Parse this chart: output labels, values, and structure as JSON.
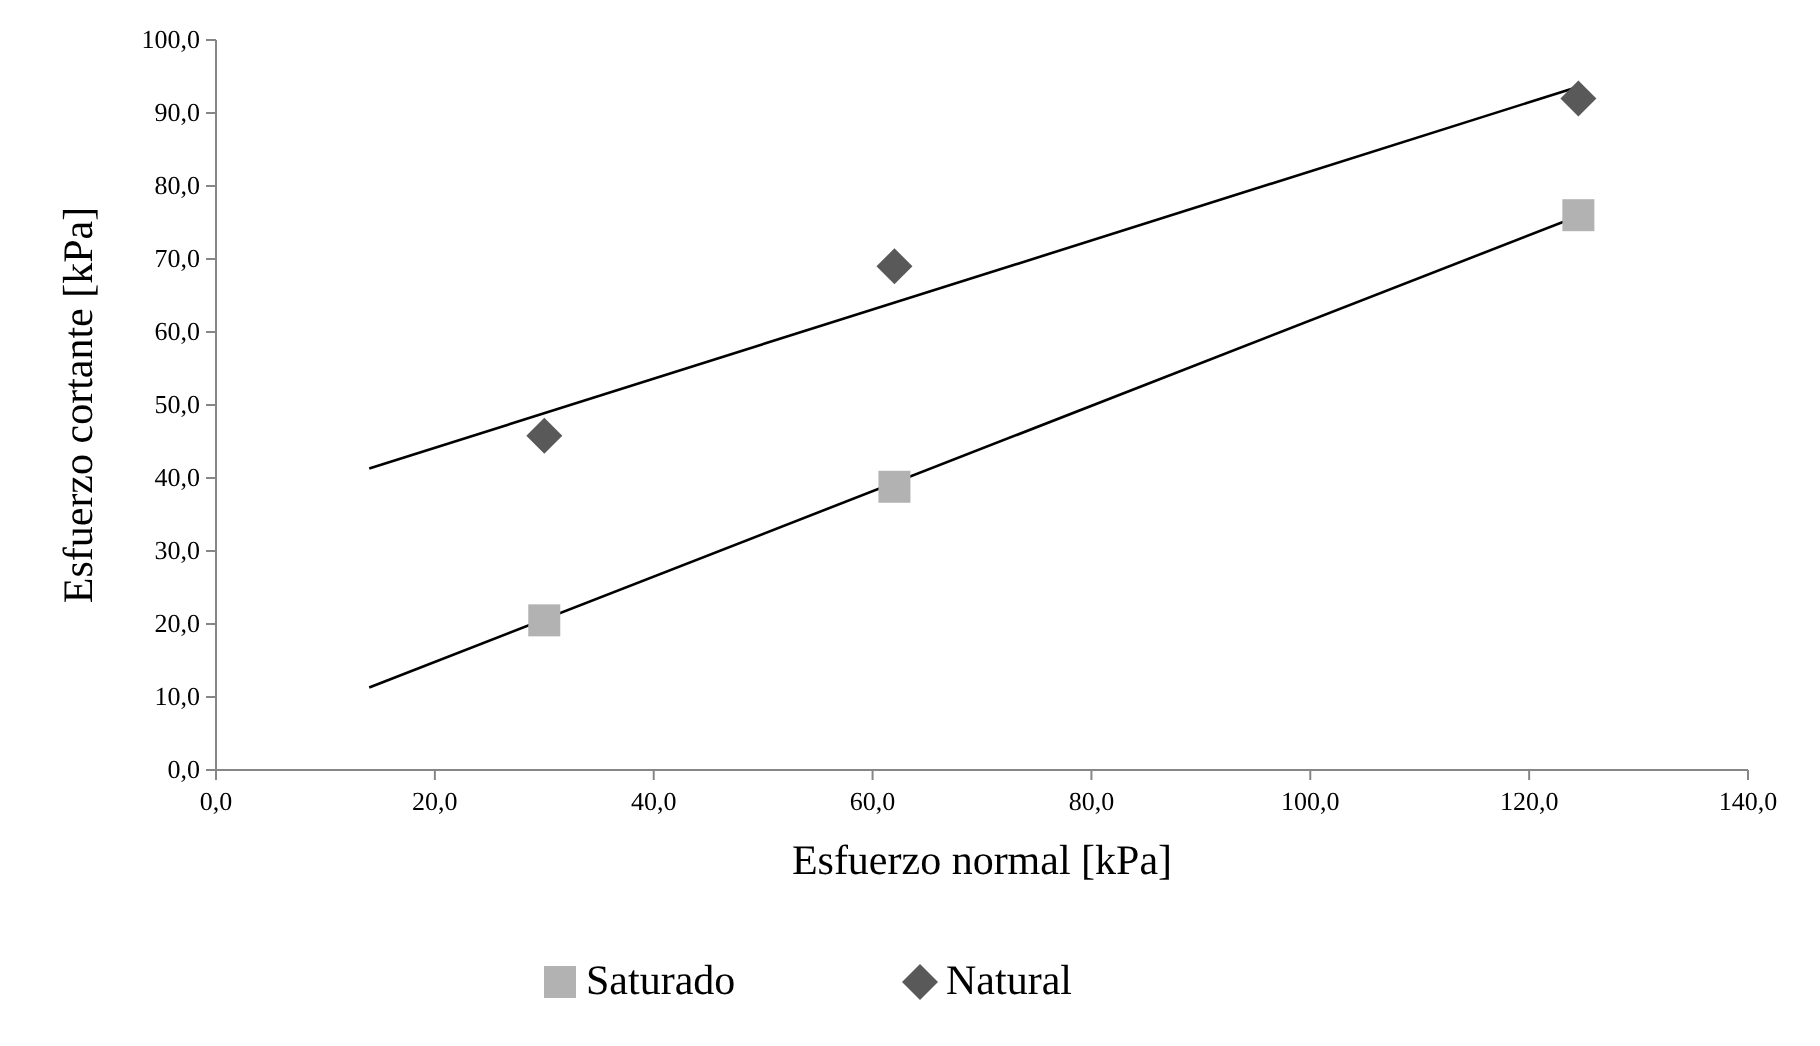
{
  "chart_data": {
    "type": "scatter",
    "xlabel": "Esfuerzo normal [kPa]",
    "ylabel": "Esfuerzo cortante [kPa]",
    "xlim": [
      0,
      140
    ],
    "ylim": [
      0,
      100
    ],
    "xticks": [
      {
        "value": 0,
        "label": "0,0"
      },
      {
        "value": 20,
        "label": "20,0"
      },
      {
        "value": 40,
        "label": "40,0"
      },
      {
        "value": 60,
        "label": "60,0"
      },
      {
        "value": 80,
        "label": "80,0"
      },
      {
        "value": 100,
        "label": "100,0"
      },
      {
        "value": 120,
        "label": "120,0"
      },
      {
        "value": 140,
        "label": "140,0"
      }
    ],
    "yticks": [
      {
        "value": 0,
        "label": "0,0"
      },
      {
        "value": 10,
        "label": "10,0"
      },
      {
        "value": 20,
        "label": "20,0"
      },
      {
        "value": 30,
        "label": "30,0"
      },
      {
        "value": 40,
        "label": "40,0"
      },
      {
        "value": 50,
        "label": "50,0"
      },
      {
        "value": 60,
        "label": "60,0"
      },
      {
        "value": 70,
        "label": "70,0"
      },
      {
        "value": 80,
        "label": "80,0"
      },
      {
        "value": 90,
        "label": "90,0"
      },
      {
        "value": 100,
        "label": "100,0"
      }
    ],
    "grid": false,
    "legend": "bottom",
    "series": [
      {
        "name": "Saturado",
        "marker": "square",
        "color": "#b2b2b2",
        "x": [
          30,
          62,
          124.5
        ],
        "values": [
          20.5,
          38.8,
          76
        ]
      },
      {
        "name": "Natural",
        "marker": "diamond",
        "color": "#595959",
        "x": [
          30,
          62,
          124.5
        ],
        "values": [
          45.8,
          69,
          92
        ]
      },
      {
        "type": "line",
        "color": "#000000",
        "x": [
          14,
          124.5
        ],
        "values": [
          11.3,
          75.9
        ]
      },
      {
        "type": "line",
        "color": "#000000",
        "x": [
          14,
          124.5
        ],
        "values": [
          41.3,
          93.6
        ]
      }
    ]
  }
}
